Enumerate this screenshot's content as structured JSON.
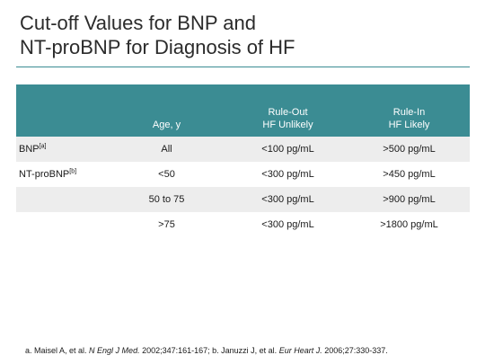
{
  "title": {
    "line1": "Cut-off Values for BNP and",
    "line2": "NT-proBNP for Diagnosis of HF"
  },
  "table": {
    "headers": [
      {
        "lines": [
          ""
        ]
      },
      {
        "lines": [
          "Age, y"
        ]
      },
      {
        "lines": [
          "Rule-Out",
          "HF Unlikely"
        ]
      },
      {
        "lines": [
          "Rule-In",
          "HF Likely"
        ]
      }
    ],
    "rows": [
      {
        "marker": "BNP",
        "sup": "[a]",
        "age": "All",
        "rule_out": "<100 pg/mL",
        "rule_in": ">500 pg/mL"
      },
      {
        "marker": "NT-proBNP",
        "sup": "[b]",
        "age": "<50",
        "rule_out": "<300 pg/mL",
        "rule_in": ">450 pg/mL"
      },
      {
        "marker": "",
        "sup": "",
        "age": "50 to 75",
        "rule_out": "<300 pg/mL",
        "rule_in": ">900 pg/mL"
      },
      {
        "marker": "",
        "sup": "",
        "age": ">75",
        "rule_out": "<300 pg/mL",
        "rule_in": ">1800 pg/mL"
      }
    ]
  },
  "footnote": {
    "a_pre": "a. Maisel A, et al. ",
    "a_journal": "N Engl J Med.",
    "a_post": " 2002;347:161-167; b. Januzzi J, et al. ",
    "b_journal": "Eur Heart J.",
    "b_post": " 2006;27:330-337."
  },
  "colors": {
    "header_bg": "#3b8c93",
    "row_shade": "#ededed",
    "rule": "#3b8c93"
  }
}
